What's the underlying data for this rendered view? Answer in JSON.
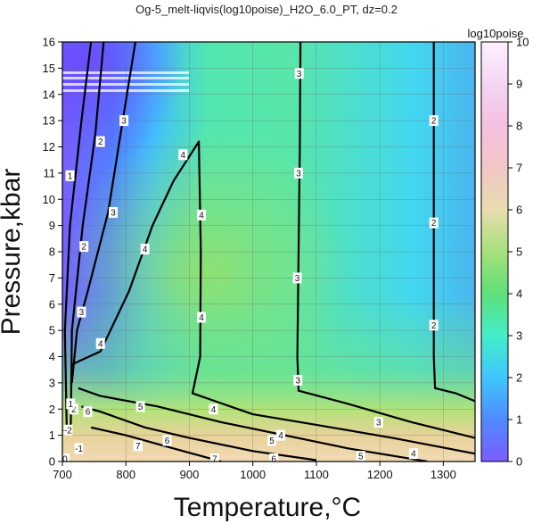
{
  "chart_data": {
    "type": "heatmap",
    "title": "Og-5_melt-liqvis(log10poise)_H2O_6.0_PT, dz=0.2",
    "xlabel": "Temperature,°C",
    "ylabel": "Pressure,kbar",
    "xlim": [
      700,
      1350
    ],
    "ylim": [
      0,
      16
    ],
    "x_ticks": [
      700,
      800,
      900,
      1000,
      1100,
      1200,
      1300
    ],
    "y_ticks": [
      0,
      1,
      2,
      3,
      4,
      5,
      6,
      7,
      8,
      9,
      10,
      11,
      12,
      13,
      14,
      15,
      16
    ],
    "grid": true,
    "colorbar": {
      "label": "log10poise",
      "range": [
        0,
        10
      ],
      "ticks": [
        0,
        1,
        2,
        3,
        4,
        5,
        6,
        7,
        8,
        9,
        10
      ],
      "colors": [
        "#7b5cff",
        "#4f8bff",
        "#3fc6ff",
        "#43eec8",
        "#5ee07a",
        "#a7e07a",
        "#e8ddb0",
        "#f2c6c6",
        "#f6c0e0",
        "#f3d6f3",
        "#fff0ff"
      ]
    },
    "field_samples": [
      {
        "T": 710,
        "P": 14,
        "value": 1.2
      },
      {
        "T": 760,
        "P": 10,
        "value": 2.5
      },
      {
        "T": 800,
        "P": 7,
        "value": 3.5
      },
      {
        "T": 880,
        "P": 6,
        "value": 4.4
      },
      {
        "T": 1000,
        "P": 8,
        "value": 3.6
      },
      {
        "T": 1100,
        "P": 10,
        "value": 3.0
      },
      {
        "T": 1250,
        "P": 8,
        "value": 2.3
      },
      {
        "T": 1340,
        "P": 3,
        "value": 2.1
      },
      {
        "T": 850,
        "P": 0.5,
        "value": 7.5
      }
    ],
    "contours": [
      {
        "level": 1,
        "points": [
          [
            707,
            1.0
          ],
          [
            704,
            5.0
          ],
          [
            712,
            9.0
          ],
          [
            730,
            13.0
          ],
          [
            745,
            16.0
          ]
        ],
        "labels": [
          {
            "T": 712,
            "P": 10.9,
            "text": "1"
          }
        ]
      },
      {
        "level": 2,
        "points": [
          [
            713,
            1.0
          ],
          [
            715,
            5.0
          ],
          [
            732,
            9.0
          ],
          [
            752,
            12.5
          ],
          [
            765,
            16.0
          ]
        ],
        "labels": [
          {
            "T": 718,
            "P": 2.0,
            "text": "2"
          },
          {
            "T": 734,
            "P": 8.2,
            "text": "2"
          },
          {
            "T": 760,
            "P": 12.2,
            "text": "2"
          }
        ]
      },
      {
        "level": 3,
        "points": [
          [
            715,
            3.0
          ],
          [
            723,
            5.0
          ],
          [
            740,
            6.5
          ],
          [
            772,
            9.5
          ],
          [
            795,
            13.0
          ],
          [
            815,
            16.0
          ]
        ],
        "labels": [
          {
            "T": 730,
            "P": 5.7,
            "text": "3"
          },
          {
            "T": 780,
            "P": 9.5,
            "text": "3"
          },
          {
            "T": 797,
            "P": 13.0,
            "text": "3"
          }
        ]
      },
      {
        "level": 4,
        "points": [
          [
            715,
            3.7
          ],
          [
            760,
            4.2
          ],
          [
            805,
            6.5
          ],
          [
            842,
            9.0
          ],
          [
            875,
            10.7
          ],
          [
            915,
            12.2
          ],
          [
            918,
            8.0
          ],
          [
            917,
            4.0
          ],
          [
            905,
            2.6
          ],
          [
            1000,
            1.8
          ],
          [
            1100,
            1.4
          ],
          [
            1220,
            0.9
          ],
          [
            1350,
            0.3
          ]
        ],
        "labels": [
          {
            "T": 760,
            "P": 4.5,
            "text": "4"
          },
          {
            "T": 830,
            "P": 8.1,
            "text": "4"
          },
          {
            "T": 890,
            "P": 11.7,
            "text": "4"
          },
          {
            "T": 919,
            "P": 9.4,
            "text": "4"
          },
          {
            "T": 919,
            "P": 5.5,
            "text": "4"
          },
          {
            "T": 938,
            "P": 2.0,
            "text": "4"
          },
          {
            "T": 1044,
            "P": 1.0,
            "text": "4"
          },
          {
            "T": 1253,
            "P": 0.3,
            "text": "4"
          }
        ]
      },
      {
        "level": 5,
        "points": [
          [
            725,
            2.8
          ],
          [
            760,
            2.5
          ],
          [
            850,
            2.1
          ],
          [
            950,
            1.5
          ],
          [
            1050,
            1.0
          ],
          [
            1150,
            0.5
          ],
          [
            1250,
            0.1
          ],
          [
            1275,
            0.0
          ]
        ],
        "labels": [
          {
            "T": 823,
            "P": 2.1,
            "text": "5"
          },
          {
            "T": 1030,
            "P": 0.8,
            "text": "5"
          },
          {
            "T": 1170,
            "P": 0.2,
            "text": "5"
          }
        ]
      },
      {
        "level": 6,
        "points": [
          [
            730,
            2.1
          ],
          [
            760,
            1.9
          ],
          [
            830,
            1.3
          ],
          [
            900,
            0.9
          ],
          [
            1000,
            0.4
          ],
          [
            1100,
            0.05
          ]
        ],
        "labels": [
          {
            "T": 740,
            "P": 1.9,
            "text": "6"
          },
          {
            "T": 865,
            "P": 0.8,
            "text": "6"
          },
          {
            "T": 1033,
            "P": 0.1,
            "text": "6"
          }
        ]
      },
      {
        "level": 7,
        "points": [
          [
            745,
            1.3
          ],
          [
            800,
            1.0
          ],
          [
            860,
            0.6
          ],
          [
            920,
            0.2
          ],
          [
            950,
            0.0
          ]
        ],
        "labels": [
          {
            "T": 819,
            "P": 0.6,
            "text": "7"
          },
          {
            "T": 940,
            "P": 0.1,
            "text": "7"
          }
        ]
      },
      {
        "level": 3,
        "points": [
          [
            1075,
            16.0
          ],
          [
            1074,
            12.0
          ],
          [
            1072,
            8.0
          ],
          [
            1070,
            4.0
          ],
          [
            1072,
            2.7
          ],
          [
            1150,
            2.2
          ],
          [
            1250,
            1.5
          ],
          [
            1350,
            0.9
          ]
        ],
        "labels": [
          {
            "T": 1073,
            "P": 14.8,
            "text": "3"
          },
          {
            "T": 1072,
            "P": 11.0,
            "text": "3"
          },
          {
            "T": 1070,
            "P": 7.0,
            "text": "3"
          },
          {
            "T": 1071,
            "P": 3.1,
            "text": "3"
          },
          {
            "T": 1198,
            "P": 1.5,
            "text": "3"
          }
        ]
      },
      {
        "level": 2,
        "points": [
          [
            1285,
            16.0
          ],
          [
            1285,
            12.0
          ],
          [
            1285,
            8.0
          ],
          [
            1285,
            4.0
          ],
          [
            1287,
            2.8
          ],
          [
            1320,
            2.6
          ],
          [
            1350,
            2.3
          ]
        ],
        "labels": [
          {
            "T": 1285,
            "P": 13.0,
            "text": "2"
          },
          {
            "T": 1285,
            "P": 9.1,
            "text": "2"
          },
          {
            "T": 1285,
            "P": 5.2,
            "text": "2"
          }
        ]
      },
      {
        "level": -2,
        "points": [
          [
            700,
            1.2
          ],
          [
            710,
            1.1
          ]
        ],
        "labels": [
          {
            "T": 709,
            "P": 1.2,
            "text": "-2"
          }
        ]
      },
      {
        "level": 1.5,
        "points": [
          [
            711,
            1.8
          ],
          [
            717,
            2.2
          ]
        ],
        "labels": [
          {
            "T": 713,
            "P": 2.2,
            "text": "1"
          }
        ]
      },
      {
        "level": 0,
        "points": [
          [
            700,
            0.1
          ],
          [
            706,
            0.2
          ]
        ],
        "labels": [
          {
            "T": 704,
            "P": 0.1,
            "text": "0"
          }
        ]
      },
      {
        "level": -1,
        "points": [
          [
            722,
            0.5
          ],
          [
            728,
            0.6
          ]
        ],
        "labels": [
          {
            "T": 726,
            "P": 0.5,
            "text": "-1"
          }
        ]
      }
    ]
  }
}
